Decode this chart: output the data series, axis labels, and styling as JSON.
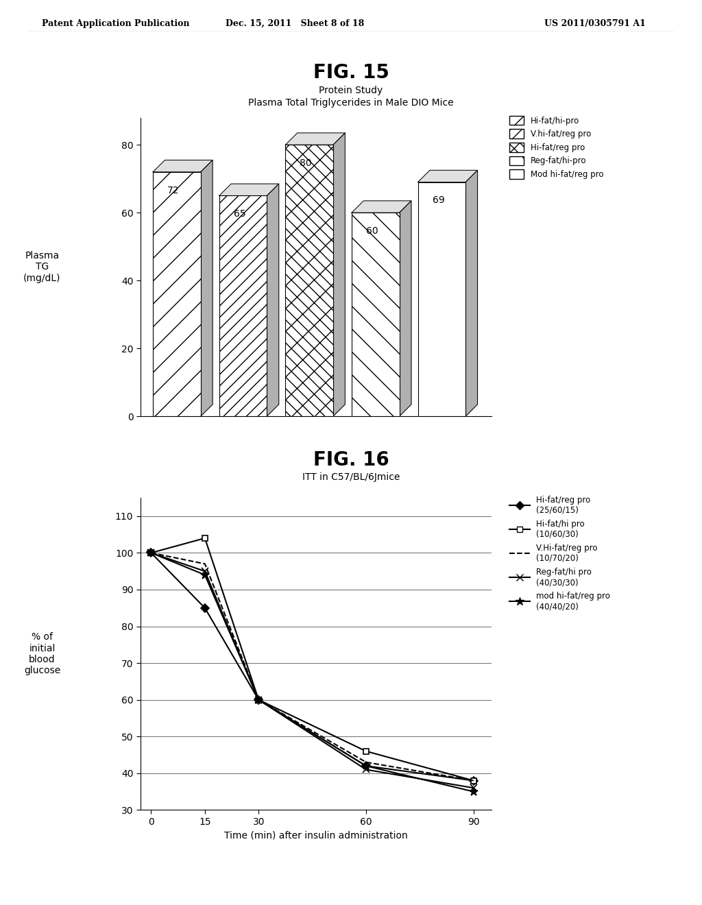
{
  "fig15": {
    "title": "FIG. 15",
    "subtitle1": "Protein Study",
    "subtitle2": "Plasma Total Triglycerides in Male DIO Mice",
    "ylabel": "Plasma\nTG\n(mg/dL)",
    "ylim": [
      0,
      88
    ],
    "yticks": [
      0,
      20,
      40,
      60,
      80
    ],
    "bars": [
      {
        "label": "Hi-fat/hi-pro",
        "value": 72
      },
      {
        "label": "V.hi-fat/reg pro",
        "value": 65
      },
      {
        "label": "Hi-fat/reg pro",
        "value": 80
      },
      {
        "label": "Reg-fat/hi-pro",
        "value": 60
      },
      {
        "label": "Mod hi-fat/reg pro",
        "value": 69
      }
    ],
    "legend_labels": [
      "Hi-fat/hi-pro",
      "V.hi-fat/reg pro",
      "Hi-fat/reg pro",
      "Reg-fat/hi-pro",
      "Mod hi-fat/reg pro"
    ],
    "hatch_patterns": [
      "/",
      "//",
      "x\\\\",
      "\\\\",
      ""
    ],
    "depth_x": 0.18,
    "depth_y": 3.5
  },
  "fig16": {
    "title": "FIG. 16",
    "subtitle": "ITT in C57/BL/6Jmice",
    "xlabel": "Time (min) after insulin administration",
    "ylabel": "% of\ninitial\nblood\nglucose",
    "ylim": [
      30,
      115
    ],
    "yticks": [
      30,
      40,
      50,
      60,
      70,
      80,
      90,
      100,
      110
    ],
    "xticks": [
      0,
      15,
      30,
      60,
      90
    ],
    "series": [
      {
        "label": "Hi-fat/reg pro\n(25/60/15)",
        "x": [
          0,
          15,
          30,
          60,
          90
        ],
        "y": [
          100,
          85,
          60,
          42,
          38
        ],
        "marker": "D",
        "linestyle": "-",
        "markersize": 6,
        "linewidth": 1.5,
        "markerfacecolor": "black"
      },
      {
        "label": "Hi-fat/hi pro\n(10/60/30)",
        "x": [
          0,
          15,
          30,
          60,
          90
        ],
        "y": [
          100,
          104,
          60,
          46,
          38
        ],
        "marker": "s",
        "linestyle": "-",
        "markersize": 6,
        "linewidth": 1.5,
        "markerfacecolor": "white"
      },
      {
        "label": "V.Hi-fat/reg pro\n(10/70/20)",
        "x": [
          0,
          15,
          30,
          60,
          90
        ],
        "y": [
          100,
          97,
          60,
          43,
          38
        ],
        "marker": "",
        "linestyle": "--",
        "markersize": 0,
        "linewidth": 1.5,
        "markerfacecolor": "black"
      },
      {
        "label": "Reg-fat/hi pro\n(40/30/30)",
        "x": [
          0,
          15,
          30,
          60,
          90
        ],
        "y": [
          100,
          95,
          60,
          41,
          36
        ],
        "marker": "x",
        "linestyle": "-",
        "markersize": 7,
        "linewidth": 1.5,
        "markerfacecolor": "black"
      },
      {
        "label": "mod hi-fat/reg pro\n(40/40/20)",
        "x": [
          0,
          15,
          30,
          60,
          90
        ],
        "y": [
          100,
          94,
          60,
          42,
          35
        ],
        "marker": "*",
        "linestyle": "-",
        "markersize": 9,
        "linewidth": 1.5,
        "markerfacecolor": "black"
      }
    ]
  },
  "header": {
    "left": "Patent Application Publication",
    "center": "Dec. 15, 2011   Sheet 8 of 18",
    "right": "US 2011/0305791 A1"
  },
  "bg_color": "#ffffff"
}
